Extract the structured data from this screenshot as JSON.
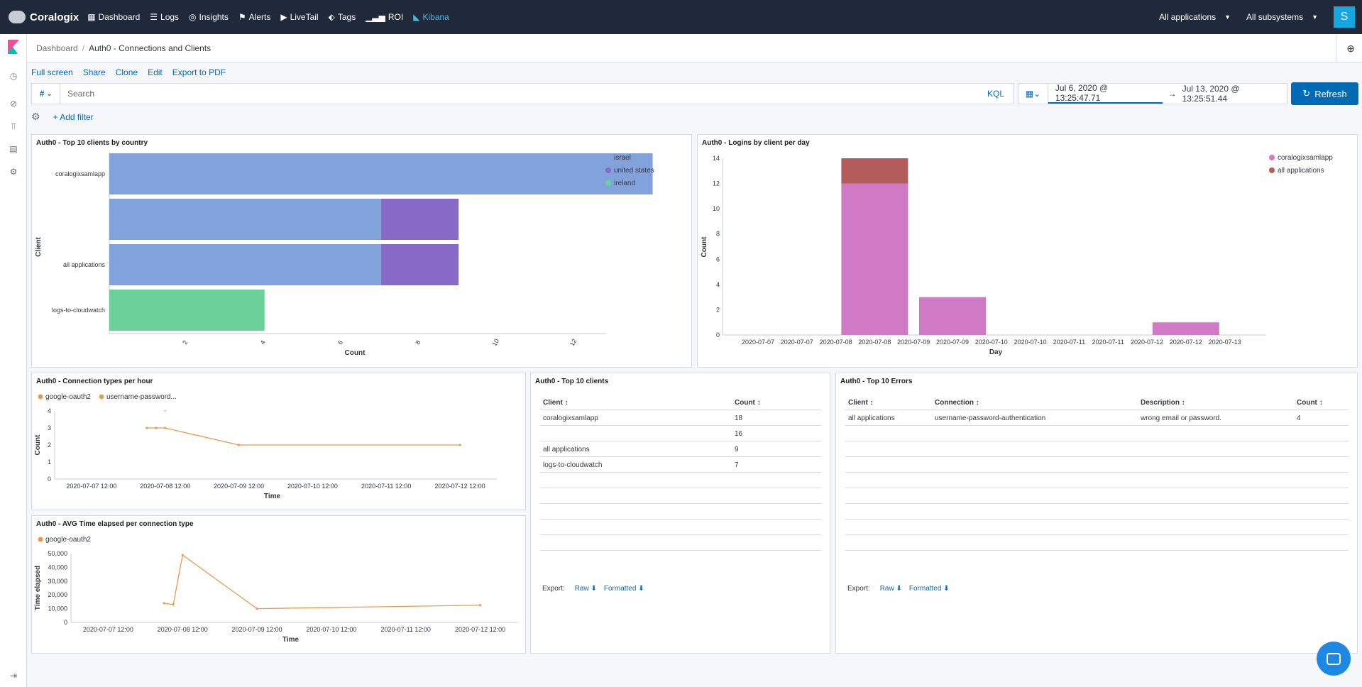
{
  "topnav": {
    "brand": "Coralogix",
    "items": [
      {
        "label": "Dashboard",
        "icon": "grid-icon"
      },
      {
        "label": "Logs",
        "icon": "database-icon"
      },
      {
        "label": "Insights",
        "icon": "insights-icon"
      },
      {
        "label": "Alerts",
        "icon": "flag-icon"
      },
      {
        "label": "LiveTail",
        "icon": "play-icon"
      },
      {
        "label": "Tags",
        "icon": "tag-icon"
      },
      {
        "label": "ROI",
        "icon": "signal-icon"
      },
      {
        "label": "Kibana",
        "icon": "kibana-icon"
      }
    ],
    "app_dropdown": "All applications",
    "subsystem_dropdown": "All subsystems",
    "avatar": "S"
  },
  "header": {
    "breadcrumb_root": "Dashboard",
    "breadcrumb_current": "Auth0 - Connections and Clients"
  },
  "actions": [
    "Full screen",
    "Share",
    "Clone",
    "Edit",
    "Export to PDF"
  ],
  "query": {
    "prefix": "#",
    "placeholder": "Search",
    "kql": "KQL",
    "start": "Jul 6, 2020 @ 13:25:47.71",
    "end": "Jul 13, 2020 @ 13:25:51.44",
    "refresh": "Refresh",
    "add_filter": "+ Add filter"
  },
  "colors": {
    "israel": "#82a2dc",
    "united_states": "#8769c8",
    "ireland": "#6ad19b",
    "coralogixsamlapp": "#d07ac6",
    "all_applications": "#b45b5b",
    "orange": "#e89b4d",
    "orange2": "#d6a55a",
    "link": "#006bb4"
  },
  "panels": {
    "top_clients_country": {
      "title": "Auth0 - Top 10 clients by country"
    },
    "logins_per_day": {
      "title": "Auth0 - Logins by client per day"
    },
    "conn_types_hour": {
      "title": "Auth0 - Connection types per hour"
    },
    "avg_time": {
      "title": "Auth0 - AVG Time elapsed per connection type"
    },
    "top_clients": {
      "title": "Auth0 - Top 10 clients",
      "headers": [
        "Client ↕",
        "Count ↕"
      ],
      "rows": [
        [
          "coralogixsamlapp",
          "18"
        ],
        [
          "",
          "16"
        ],
        [
          "all applications",
          "9"
        ],
        [
          "logs-to-cloudwatch",
          "7"
        ]
      ]
    },
    "top_errors": {
      "title": "Auth0 - Top 10 Errors",
      "headers": [
        "Client ↕",
        "Connection ↕",
        "Description ↕",
        "Count ↕"
      ],
      "rows": [
        [
          "all applications",
          "username-password-authentication",
          "wrong email or password.",
          "4"
        ]
      ]
    },
    "export": {
      "label": "Export:",
      "raw": "Raw ⬇",
      "formatted": "Formatted ⬇"
    }
  },
  "chart_data": [
    {
      "type": "bar",
      "orientation": "horizontal",
      "stacked": true,
      "title": "Auth0 - Top 10 clients by country",
      "xlabel": "Count",
      "ylabel": "Client",
      "categories": [
        "coralogixsamlapp",
        "",
        "all applications",
        "logs-to-cloudwatch"
      ],
      "series": [
        {
          "name": "israel",
          "values": [
            14,
            7,
            7,
            0
          ]
        },
        {
          "name": "united states",
          "values": [
            0,
            2,
            2,
            0
          ]
        },
        {
          "name": "ireland",
          "values": [
            0,
            0,
            0,
            4
          ]
        }
      ],
      "xticks": [
        "2",
        "4",
        "6",
        "8",
        "10",
        "12"
      ],
      "xlim": [
        0,
        14
      ],
      "legend": "right"
    },
    {
      "type": "bar",
      "stacked": true,
      "title": "Auth0 - Logins by client per day",
      "xlabel": "Day",
      "ylabel": "Count",
      "categories": [
        "2020-07-07",
        "2020-07-07",
        "2020-07-08",
        "2020-07-08",
        "2020-07-09",
        "2020-07-09",
        "2020-07-10",
        "2020-07-10",
        "2020-07-11",
        "2020-07-11",
        "2020-07-12",
        "2020-07-12",
        "2020-07-13"
      ],
      "series": [
        {
          "name": "coralogixsamlapp",
          "values": [
            0,
            0,
            0,
            12,
            0,
            3,
            0,
            0,
            0,
            0,
            0,
            1,
            0
          ]
        },
        {
          "name": "all applications",
          "values": [
            0,
            0,
            0,
            2,
            0,
            0,
            0,
            0,
            0,
            0,
            0,
            0,
            0
          ]
        }
      ],
      "yticks": [
        "0",
        "2",
        "4",
        "6",
        "8",
        "10",
        "12",
        "14"
      ],
      "ylim": [
        0,
        14
      ],
      "legend": "top-right"
    },
    {
      "type": "line",
      "title": "Auth0 - Connection types per hour",
      "xlabel": "Time",
      "ylabel": "Count",
      "xticks": [
        "2020-07-07 12:00",
        "2020-07-08 12:00",
        "2020-07-09 12:00",
        "2020-07-10 12:00",
        "2020-07-11 12:00",
        "2020-07-12 12:00"
      ],
      "yticks": [
        "0",
        "1",
        "2",
        "3",
        "4"
      ],
      "ylim": [
        0,
        4
      ],
      "series": [
        {
          "name": "google-oauth2",
          "x": [
            "2020-07-08 06:00",
            "2020-07-08 09:00",
            "2020-07-08 12:00",
            "2020-07-09 12:00",
            "2020-07-12 12:00"
          ],
          "values": [
            3,
            3,
            3,
            2,
            2
          ]
        },
        {
          "name": "username-password...",
          "x": [
            "2020-07-08 12:00"
          ],
          "values": [
            4
          ]
        }
      ],
      "legend": "top-left"
    },
    {
      "type": "line",
      "title": "Auth0 - AVG Time elapsed per connection type",
      "xlabel": "Time",
      "ylabel": "Time elapsed",
      "xticks": [
        "2020-07-07 12:00",
        "2020-07-08 12:00",
        "2020-07-09 12:00",
        "2020-07-10 12:00",
        "2020-07-11 12:00",
        "2020-07-12 12:00"
      ],
      "yticks": [
        "0",
        "10,000",
        "20,000",
        "30,000",
        "40,000",
        "50,000"
      ],
      "ylim": [
        0,
        50000
      ],
      "series": [
        {
          "name": "google-oauth2",
          "x": [
            "2020-07-08 06:00",
            "2020-07-08 09:00",
            "2020-07-08 12:00",
            "2020-07-09 12:00",
            "2020-07-12 12:00"
          ],
          "values": [
            14000,
            13000,
            49000,
            10000,
            12500
          ]
        }
      ],
      "legend": "top-left"
    }
  ]
}
